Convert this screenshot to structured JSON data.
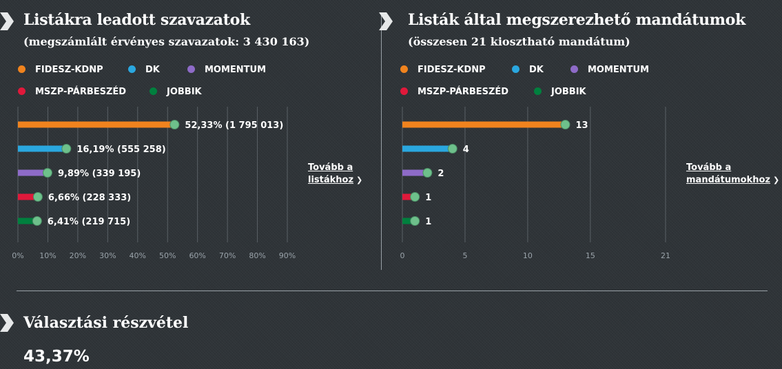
{
  "colors": {
    "background": "#2f3438",
    "fidesz": "#f0831e",
    "dk": "#2aa7df",
    "momentum": "#8e6bc8",
    "mszp": "#e0193b",
    "jobbik": "#00803e",
    "marker": "#6ec08b",
    "grid": "#5a6166",
    "axis_text": "#9aa3aa"
  },
  "left": {
    "title": "Listákra leadott szavazatok",
    "subtitle": "(megszámlált érvényes szavazatok: 3 430 163)",
    "legend": [
      "FIDESZ-KDNP",
      "DK",
      "MOMENTUM",
      "MSZP-PÁRBESZÉD",
      "JOBBIK"
    ],
    "link_line1": "Tovább a",
    "link_line2": "listákhoz",
    "link_icon": "chevron-right-icon"
  },
  "right": {
    "title": "Listák által megszerezhető mandátumok",
    "subtitle": "(összesen 21 kiosztható mandátum)",
    "legend": [
      "FIDESZ-KDNP",
      "DK",
      "MOMENTUM",
      "MSZP-PÁRBESZÉD",
      "JOBBIK"
    ],
    "link_line1": "Tovább a",
    "link_line2": "mandátumokhoz",
    "link_icon": "chevron-right-icon"
  },
  "turnout": {
    "title": "Választási részvétel",
    "value": "43,37%"
  },
  "chart_data": [
    {
      "type": "bar",
      "orientation": "horizontal",
      "title": "Listákra leadott szavazatok",
      "subtitle": "(megszámlált érvényes szavazatok: 3 430 163)",
      "categories": [
        "FIDESZ-KDNP",
        "DK",
        "MOMENTUM",
        "MSZP-PÁRBESZÉD",
        "JOBBIK"
      ],
      "values": [
        52.33,
        16.19,
        9.89,
        6.66,
        6.41
      ],
      "data_labels": [
        "52,33% (1 795 013)",
        "16,19% (555 258)",
        "9,89% (339 195)",
        "6,66% (228 333)",
        "6,41% (219 715)"
      ],
      "xlim": [
        0,
        90
      ],
      "xticks": [
        "0%",
        "10%",
        "20%",
        "30%",
        "40%",
        "50%",
        "60%",
        "70%",
        "80%",
        "90%"
      ],
      "grid": true,
      "legend_position": "top"
    },
    {
      "type": "bar",
      "orientation": "horizontal",
      "title": "Listák által megszerezhető mandátumok",
      "subtitle": "(összesen 21 kiosztható mandátum)",
      "categories": [
        "FIDESZ-KDNP",
        "DK",
        "MOMENTUM",
        "MSZP-PÁRBESZÉD",
        "JOBBIK"
      ],
      "values": [
        13,
        4,
        2,
        1,
        1
      ],
      "data_labels": [
        "13",
        "4",
        "2",
        "1",
        "1"
      ],
      "xlim": [
        0,
        21
      ],
      "xticks": [
        "0",
        "5",
        "10",
        "15",
        "21"
      ],
      "xtick_values": [
        0,
        5,
        10,
        15,
        21
      ],
      "grid": true,
      "legend_position": "top"
    }
  ]
}
